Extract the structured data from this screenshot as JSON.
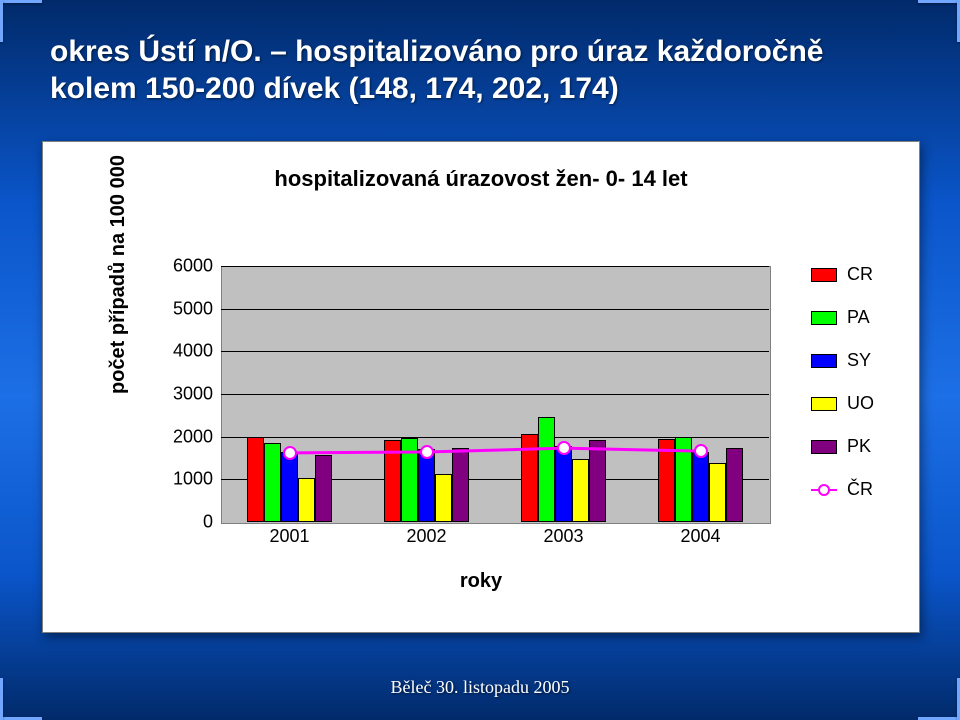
{
  "slide": {
    "title_line1": "okres Ústí n/O. – hospitalizováno pro úraz každoročně",
    "title_line2": "kolem 150-200 dívek (148, 174, 202, 174)",
    "footer": "Běleč 30. listopadu 2005",
    "background_gradient": [
      "#012a6a",
      "#0a55c9",
      "#1d6fe6",
      "#0a55c9",
      "#012a6a"
    ]
  },
  "chart": {
    "type": "bar+line",
    "title": "hospitalizovaná úrazovost žen- 0- 14 let",
    "title_fontsize": 22,
    "ylabel": "počet případů na 100 000",
    "xlabel": "roky",
    "label_fontsize": 20,
    "tick_fontsize": 18,
    "plot_bg": "#c0c0c0",
    "grid_color": "#000000",
    "ylim": [
      0,
      6000
    ],
    "ytick_step": 1000,
    "categories": [
      "2001",
      "2002",
      "2003",
      "2004"
    ],
    "series": [
      {
        "key": "CR",
        "color": "#ff0000",
        "values": [
          2000,
          1930,
          2060,
          1940
        ]
      },
      {
        "key": "PA",
        "color": "#00ff00",
        "values": [
          1850,
          1980,
          2450,
          1990
        ]
      },
      {
        "key": "SY",
        "color": "#0000ff",
        "values": [
          1650,
          1700,
          1780,
          1640
        ]
      },
      {
        "key": "UO",
        "color": "#ffff00",
        "values": [
          1030,
          1130,
          1480,
          1390
        ]
      },
      {
        "key": "PK",
        "color": "#800080",
        "values": [
          1570,
          1740,
          1920,
          1740
        ]
      }
    ],
    "line_series": {
      "key": "ČR",
      "color": "#ff00ff",
      "marker": "circle",
      "marker_fill": "#ffffff",
      "line_width": 3,
      "values": [
        1620,
        1640,
        1730,
        1660
      ]
    },
    "bar_group_gap_ratio": 0.38,
    "bar_width_ratio": 0.12
  },
  "legend": {
    "items": [
      "CR",
      "PA",
      "SY",
      "UO",
      "PK",
      "ČR"
    ]
  }
}
